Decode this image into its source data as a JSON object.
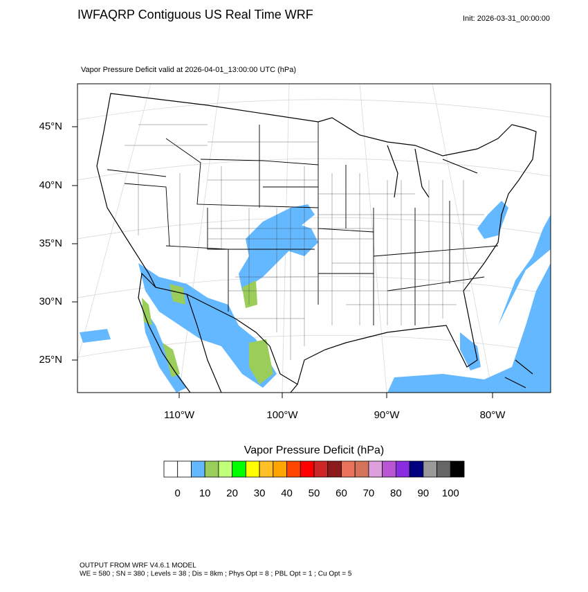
{
  "header": {
    "title": "IWFAQRP Contiguous US Real Time WRF",
    "init": "Init: 2026-03-31_00:00:00"
  },
  "map": {
    "subtitle": "Vapor Pressure Deficit valid at 2026-04-01_13:00:00 UTC   (hPa)",
    "lat_labels": [
      "45°N",
      "40°N",
      "35°N",
      "30°N",
      "25°N"
    ],
    "lon_labels": [
      "110°W",
      "100°W",
      "90°W",
      "80°W"
    ]
  },
  "colorbar": {
    "title": "Vapor Pressure Deficit  (hPa)",
    "colors": [
      "#ffffff",
      "#ffffff",
      "#63b8ff",
      "#9acd5a",
      "#c0ff7a",
      "#00ff00",
      "#ffff00",
      "#ffbf28",
      "#ffa500",
      "#ff4500",
      "#ff0000",
      "#cd2626",
      "#8b1a1a",
      "#e9735a",
      "#d2735a",
      "#dda0dd",
      "#ba55d3",
      "#8a2be2",
      "#000080",
      "#999999",
      "#666666",
      "#000000"
    ],
    "ticks": [
      0,
      10,
      20,
      30,
      40,
      50,
      60,
      70,
      80,
      90,
      100
    ]
  },
  "footer": {
    "lines": [
      "OUTPUT FROM WRF V4.6.1 MODEL",
      "WE = 580 ; SN = 380 ; Levels = 38 ; Dis = 8km ; Phys Opt = 8 ; PBL Opt = 1 ; Cu Opt = 5"
    ]
  }
}
